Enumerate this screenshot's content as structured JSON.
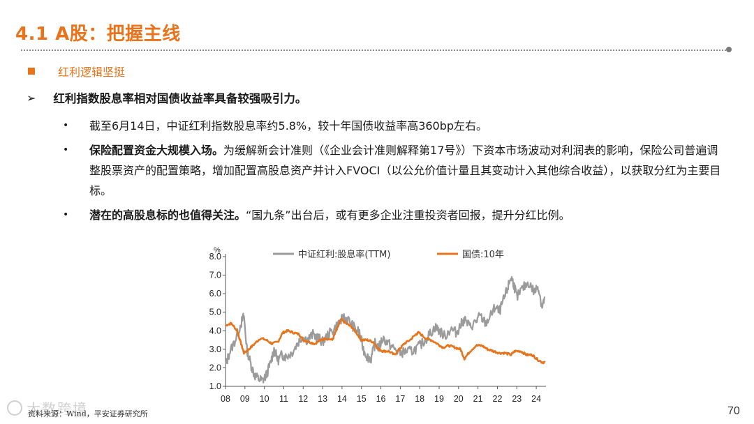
{
  "header": {
    "title": "4.1 A股：把握主线"
  },
  "section": {
    "label": "红利逻辑坚挺"
  },
  "lead": {
    "text": "红利指数股息率相对国债收益率具备较强吸引力。"
  },
  "bullets": [
    {
      "bold": "",
      "text": "截至6月14日，中证红利指数股息率约5.8%，较十年国债收益率高360bp左右。"
    },
    {
      "bold": "保险配置资金大规模入场。",
      "text": "为缓解新会计准则（《企业会计准则解释第17号》）下资本市场波动对利润表的影响，保险公司普遍调整股票资产的配置策略，增加配置高股息资产并计入FVOCI（以公允价值计量且其变动计入其他综合收益），以获取分红为主要目标。"
    },
    {
      "bold": "潜在的高股息标的也值得关注。",
      "text": "“国九条”出台后，或有更多企业注重投资者回报，提升分红比例。"
    }
  ],
  "chart_data": {
    "type": "line",
    "unit_label": "%",
    "ylim": [
      1.0,
      8.0
    ],
    "y_ticks": [
      "1.0",
      "2.0",
      "3.0",
      "4.0",
      "5.0",
      "6.0",
      "7.0",
      "8.0"
    ],
    "x_ticks": [
      "08",
      "09",
      "10",
      "11",
      "12",
      "13",
      "14",
      "15",
      "16",
      "17",
      "18",
      "19",
      "20",
      "21",
      "22",
      "23",
      "24"
    ],
    "x_range": [
      2008.0,
      2024.5
    ],
    "grid": false,
    "legend_position": "top",
    "series": [
      {
        "name": "中证红利:股息率(TTM)",
        "color": "#9b9b9b",
        "points": [
          [
            2008.0,
            2.1
          ],
          [
            2008.2,
            2.8
          ],
          [
            2008.5,
            3.5
          ],
          [
            2008.8,
            4.4
          ],
          [
            2008.95,
            4.8
          ],
          [
            2009.1,
            3.0
          ],
          [
            2009.3,
            2.2
          ],
          [
            2009.5,
            1.6
          ],
          [
            2009.7,
            1.4
          ],
          [
            2009.9,
            1.3
          ],
          [
            2010.1,
            1.6
          ],
          [
            2010.3,
            2.2
          ],
          [
            2010.5,
            3.0
          ],
          [
            2010.7,
            2.4
          ],
          [
            2010.9,
            2.7
          ],
          [
            2011.1,
            2.6
          ],
          [
            2011.4,
            2.8
          ],
          [
            2011.7,
            3.3
          ],
          [
            2011.95,
            3.7
          ],
          [
            2012.2,
            3.5
          ],
          [
            2012.5,
            3.8
          ],
          [
            2012.8,
            3.6
          ],
          [
            2013.0,
            3.4
          ],
          [
            2013.3,
            3.8
          ],
          [
            2013.6,
            4.1
          ],
          [
            2013.9,
            4.5
          ],
          [
            2014.1,
            4.7
          ],
          [
            2014.3,
            4.6
          ],
          [
            2014.6,
            4.2
          ],
          [
            2014.9,
            3.9
          ],
          [
            2015.1,
            3.0
          ],
          [
            2015.3,
            2.6
          ],
          [
            2015.5,
            2.5
          ],
          [
            2015.7,
            3.3
          ],
          [
            2015.9,
            3.1
          ],
          [
            2016.1,
            3.6
          ],
          [
            2016.4,
            3.3
          ],
          [
            2016.7,
            3.0
          ],
          [
            2017.0,
            2.8
          ],
          [
            2017.3,
            2.9
          ],
          [
            2017.6,
            2.9
          ],
          [
            2017.9,
            3.1
          ],
          [
            2018.2,
            3.4
          ],
          [
            2018.5,
            3.8
          ],
          [
            2018.8,
            4.2
          ],
          [
            2019.0,
            4.0
          ],
          [
            2019.3,
            3.7
          ],
          [
            2019.6,
            4.1
          ],
          [
            2019.9,
            3.9
          ],
          [
            2020.1,
            4.3
          ],
          [
            2020.3,
            4.6
          ],
          [
            2020.6,
            4.2
          ],
          [
            2020.9,
            4.5
          ],
          [
            2021.1,
            4.8
          ],
          [
            2021.4,
            4.4
          ],
          [
            2021.7,
            4.9
          ],
          [
            2021.9,
            5.3
          ],
          [
            2022.1,
            5.0
          ],
          [
            2022.3,
            5.6
          ],
          [
            2022.5,
            6.2
          ],
          [
            2022.7,
            6.9
          ],
          [
            2022.85,
            6.5
          ],
          [
            2023.0,
            5.8
          ],
          [
            2023.3,
            6.3
          ],
          [
            2023.6,
            6.6
          ],
          [
            2023.9,
            6.1
          ],
          [
            2024.1,
            6.4
          ],
          [
            2024.3,
            5.3
          ],
          [
            2024.45,
            5.8
          ]
        ]
      },
      {
        "name": "国债:10年",
        "color": "#e8731a",
        "points": [
          [
            2008.0,
            4.3
          ],
          [
            2008.3,
            4.4
          ],
          [
            2008.6,
            4.0
          ],
          [
            2008.8,
            3.3
          ],
          [
            2008.95,
            2.8
          ],
          [
            2009.2,
            3.0
          ],
          [
            2009.5,
            3.3
          ],
          [
            2009.8,
            3.6
          ],
          [
            2010.1,
            3.5
          ],
          [
            2010.4,
            3.3
          ],
          [
            2010.7,
            3.4
          ],
          [
            2010.95,
            3.9
          ],
          [
            2011.2,
            4.0
          ],
          [
            2011.5,
            3.9
          ],
          [
            2011.8,
            3.8
          ],
          [
            2012.0,
            3.5
          ],
          [
            2012.3,
            3.4
          ],
          [
            2012.6,
            3.3
          ],
          [
            2012.9,
            3.5
          ],
          [
            2013.2,
            3.6
          ],
          [
            2013.5,
            3.5
          ],
          [
            2013.7,
            4.0
          ],
          [
            2013.95,
            4.6
          ],
          [
            2014.2,
            4.4
          ],
          [
            2014.5,
            4.2
          ],
          [
            2014.8,
            3.8
          ],
          [
            2015.0,
            3.5
          ],
          [
            2015.3,
            3.5
          ],
          [
            2015.6,
            3.4
          ],
          [
            2015.9,
            3.0
          ],
          [
            2016.1,
            2.9
          ],
          [
            2016.4,
            2.9
          ],
          [
            2016.7,
            2.7
          ],
          [
            2016.95,
            3.0
          ],
          [
            2017.2,
            3.3
          ],
          [
            2017.5,
            3.5
          ],
          [
            2017.8,
            3.8
          ],
          [
            2017.95,
            3.9
          ],
          [
            2018.3,
            3.6
          ],
          [
            2018.6,
            3.5
          ],
          [
            2018.9,
            3.3
          ],
          [
            2019.2,
            3.1
          ],
          [
            2019.5,
            3.2
          ],
          [
            2019.8,
            3.1
          ],
          [
            2020.1,
            3.0
          ],
          [
            2020.3,
            2.5
          ],
          [
            2020.6,
            2.9
          ],
          [
            2020.9,
            3.2
          ],
          [
            2021.2,
            3.2
          ],
          [
            2021.5,
            3.0
          ],
          [
            2021.8,
            2.9
          ],
          [
            2022.1,
            2.8
          ],
          [
            2022.4,
            2.8
          ],
          [
            2022.7,
            2.7
          ],
          [
            2022.9,
            2.9
          ],
          [
            2023.2,
            2.9
          ],
          [
            2023.5,
            2.7
          ],
          [
            2023.8,
            2.7
          ],
          [
            2024.0,
            2.5
          ],
          [
            2024.3,
            2.3
          ],
          [
            2024.45,
            2.3
          ]
        ]
      }
    ]
  },
  "footer": {
    "source": "资料来源：Wind，平安证券研究所",
    "page_number": "70",
    "watermark": "大数跨境"
  }
}
